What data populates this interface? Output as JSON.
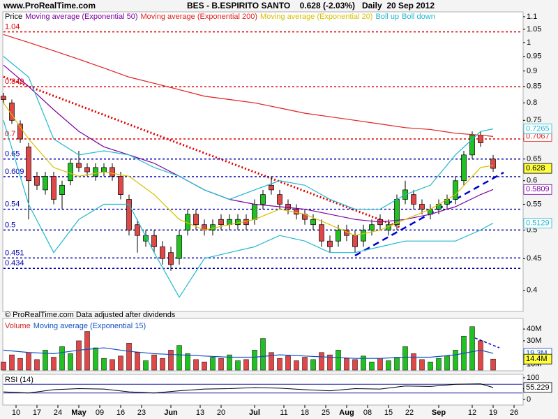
{
  "chart_data": [
    {
      "type": "candlestick",
      "source": "www.ProRealTime.com",
      "title": "BES - B.ESPIRITO SANTO    0.628 (-2.03%)   Daily  20 Sep 2012",
      "note": "© ProRealTime.com  Data adjusted after dividends",
      "legend_label": "Price",
      "log_scale": true,
      "xlim": [
        0,
        124
      ],
      "ylim": [
        0.371,
        1.117
      ],
      "yticks": [
        1.1,
        1.05,
        1,
        0.95,
        0.9,
        0.85,
        0.8,
        0.75,
        0.7,
        0.65,
        0.6,
        0.55,
        0.5,
        0.45,
        0.4
      ],
      "up_color": "#22c022",
      "down_color": "#e04848",
      "x": [
        0,
        2,
        4,
        6,
        8,
        10,
        12,
        14,
        16,
        18,
        20,
        22,
        24,
        26,
        28,
        30,
        32,
        34,
        36,
        38,
        40,
        42,
        44,
        46,
        48,
        50,
        52,
        54,
        56,
        58,
        60,
        62,
        64,
        66,
        68,
        70,
        72,
        74,
        76,
        78,
        80,
        82,
        84,
        86,
        88,
        90,
        92,
        94,
        96,
        98,
        100,
        102,
        104,
        106,
        108,
        110,
        112,
        114,
        117
      ],
      "open": [
        0.82,
        0.8,
        0.74,
        0.68,
        0.61,
        0.58,
        0.61,
        0.57,
        0.6,
        0.64,
        0.63,
        0.61,
        0.62,
        0.63,
        0.61,
        0.56,
        0.51,
        0.48,
        0.49,
        0.47,
        0.46,
        0.45,
        0.5,
        0.53,
        0.51,
        0.5,
        0.52,
        0.51,
        0.51,
        0.52,
        0.52,
        0.55,
        0.59,
        0.57,
        0.55,
        0.54,
        0.53,
        0.51,
        0.51,
        0.48,
        0.48,
        0.5,
        0.49,
        0.48,
        0.5,
        0.52,
        0.5,
        0.51,
        0.56,
        0.57,
        0.55,
        0.53,
        0.54,
        0.55,
        0.56,
        0.6,
        0.66,
        0.71,
        0.65
      ],
      "high": [
        0.83,
        0.81,
        0.75,
        0.69,
        0.62,
        0.62,
        0.62,
        0.6,
        0.65,
        0.67,
        0.64,
        0.64,
        0.64,
        0.64,
        0.62,
        0.57,
        0.52,
        0.5,
        0.5,
        0.48,
        0.47,
        0.5,
        0.54,
        0.54,
        0.52,
        0.52,
        0.53,
        0.53,
        0.53,
        0.53,
        0.56,
        0.58,
        0.61,
        0.58,
        0.56,
        0.55,
        0.54,
        0.53,
        0.52,
        0.49,
        0.51,
        0.51,
        0.5,
        0.51,
        0.52,
        0.53,
        0.52,
        0.57,
        0.6,
        0.58,
        0.56,
        0.55,
        0.56,
        0.57,
        0.61,
        0.67,
        0.72,
        0.72,
        0.66
      ],
      "low": [
        0.8,
        0.74,
        0.69,
        0.52,
        0.58,
        0.57,
        0.55,
        0.54,
        0.59,
        0.62,
        0.61,
        0.6,
        0.61,
        0.6,
        0.56,
        0.49,
        0.46,
        0.47,
        0.46,
        0.44,
        0.43,
        0.44,
        0.49,
        0.5,
        0.49,
        0.49,
        0.5,
        0.5,
        0.5,
        0.5,
        0.51,
        0.54,
        0.57,
        0.54,
        0.53,
        0.52,
        0.51,
        0.5,
        0.47,
        0.46,
        0.47,
        0.48,
        0.46,
        0.47,
        0.49,
        0.5,
        0.49,
        0.5,
        0.55,
        0.54,
        0.53,
        0.52,
        0.53,
        0.54,
        0.55,
        0.59,
        0.65,
        0.68,
        0.62
      ],
      "close": [
        0.81,
        0.75,
        0.7,
        0.6,
        0.59,
        0.61,
        0.56,
        0.59,
        0.64,
        0.63,
        0.62,
        0.63,
        0.63,
        0.61,
        0.57,
        0.5,
        0.49,
        0.49,
        0.47,
        0.45,
        0.44,
        0.49,
        0.53,
        0.51,
        0.5,
        0.51,
        0.51,
        0.52,
        0.52,
        0.51,
        0.55,
        0.57,
        0.58,
        0.55,
        0.54,
        0.53,
        0.52,
        0.52,
        0.48,
        0.47,
        0.5,
        0.49,
        0.47,
        0.5,
        0.51,
        0.51,
        0.51,
        0.56,
        0.58,
        0.55,
        0.54,
        0.54,
        0.55,
        0.56,
        0.6,
        0.66,
        0.71,
        0.69,
        0.628
      ],
      "series": [
        {
          "name": "Moving average (Exponential 50)",
          "color": "#7a00a0",
          "value_box": true,
          "x": [
            0,
            6,
            12,
            18,
            24,
            30,
            36,
            42,
            48,
            54,
            60,
            66,
            72,
            78,
            84,
            90,
            96,
            102,
            108,
            114,
            117
          ],
          "values": [
            0.92,
            0.85,
            0.78,
            0.72,
            0.68,
            0.66,
            0.64,
            0.61,
            0.58,
            0.56,
            0.55,
            0.545,
            0.54,
            0.53,
            0.52,
            0.515,
            0.52,
            0.53,
            0.545,
            0.57,
            0.5809
          ]
        },
        {
          "name": "Moving average (Exponential 200)",
          "color": "#e02020",
          "value_box": true,
          "x": [
            0,
            6,
            12,
            18,
            24,
            30,
            36,
            42,
            48,
            54,
            60,
            66,
            72,
            78,
            84,
            90,
            96,
            102,
            108,
            114,
            117
          ],
          "values": [
            1.03,
            1.0,
            0.97,
            0.94,
            0.91,
            0.88,
            0.86,
            0.84,
            0.82,
            0.81,
            0.8,
            0.785,
            0.77,
            0.76,
            0.75,
            0.74,
            0.73,
            0.725,
            0.715,
            0.71,
            0.7067
          ]
        },
        {
          "name": "Moving average (Exponential 20)",
          "color": "#d8c000",
          "value_box": false,
          "x": [
            0,
            6,
            12,
            18,
            24,
            30,
            36,
            42,
            48,
            54,
            60,
            66,
            72,
            78,
            84,
            90,
            96,
            102,
            108,
            114,
            117
          ],
          "values": [
            0.8,
            0.7,
            0.63,
            0.61,
            0.62,
            0.61,
            0.57,
            0.52,
            0.5,
            0.51,
            0.52,
            0.54,
            0.53,
            0.51,
            0.49,
            0.5,
            0.52,
            0.54,
            0.57,
            0.63,
            0.635
          ]
        },
        {
          "name": "Boll up",
          "color": "#20b8d0",
          "value_box": true,
          "x": [
            0,
            6,
            12,
            18,
            24,
            30,
            36,
            42,
            48,
            54,
            60,
            66,
            72,
            78,
            84,
            90,
            96,
            102,
            108,
            114,
            117
          ],
          "values": [
            0.95,
            0.88,
            0.7,
            0.66,
            0.67,
            0.66,
            0.63,
            0.61,
            0.58,
            0.56,
            0.58,
            0.6,
            0.59,
            0.56,
            0.54,
            0.54,
            0.57,
            0.59,
            0.66,
            0.72,
            0.7265
          ]
        },
        {
          "name": "Boll down",
          "color": "#20b8d0",
          "value_box": true,
          "x": [
            0,
            6,
            12,
            18,
            24,
            30,
            36,
            42,
            48,
            54,
            60,
            66,
            72,
            78,
            84,
            90,
            96,
            102,
            108,
            114,
            117
          ],
          "values": [
            0.75,
            0.55,
            0.46,
            0.52,
            0.55,
            0.55,
            0.46,
            0.39,
            0.45,
            0.46,
            0.47,
            0.49,
            0.48,
            0.46,
            0.46,
            0.47,
            0.48,
            0.48,
            0.48,
            0.5,
            0.5129
          ]
        }
      ],
      "levels": [
        {
          "value": 1.04,
          "label": "1.04",
          "color": "#e00000"
        },
        {
          "value": 0.849,
          "label": "0.849",
          "color": "#e00000"
        },
        {
          "value": 0.7,
          "label": "0.7",
          "color": "#e00000"
        },
        {
          "value": 0.65,
          "label": "0.65",
          "color": "#0000b0"
        },
        {
          "value": 0.609,
          "label": "0.609",
          "color": "#0000b0"
        },
        {
          "value": 0.54,
          "label": "0.54",
          "color": "#0000b0"
        },
        {
          "value": 0.5,
          "label": "0.5",
          "color": "#0000b0"
        },
        {
          "value": 0.451,
          "label": "0.451",
          "color": "#0000b0"
        },
        {
          "value": 0.434,
          "label": "0.434",
          "color": "#0000b0"
        }
      ]
    },
    {
      "type": "bar",
      "title": "Volume",
      "xlim": [
        0,
        124
      ],
      "ylim": [
        5000000,
        49000000
      ],
      "yticks": [
        {
          "value": 40000000,
          "label": "40M"
        },
        {
          "value": 30000000,
          "label": "30M"
        },
        {
          "value": 10000000,
          "label": "10M"
        }
      ],
      "x": [
        0,
        2,
        4,
        6,
        8,
        10,
        12,
        14,
        16,
        18,
        20,
        22,
        24,
        26,
        28,
        30,
        32,
        34,
        36,
        38,
        40,
        42,
        44,
        46,
        48,
        50,
        52,
        54,
        56,
        58,
        60,
        62,
        64,
        66,
        68,
        70,
        72,
        74,
        76,
        78,
        80,
        82,
        84,
        86,
        88,
        90,
        92,
        94,
        96,
        98,
        100,
        102,
        104,
        106,
        108,
        110,
        112,
        114,
        117
      ],
      "values": [
        12000000,
        18000000,
        15000000,
        20000000,
        14000000,
        22000000,
        16000000,
        25000000,
        19000000,
        30000000,
        38000000,
        24000000,
        15000000,
        14000000,
        17000000,
        28000000,
        20000000,
        13000000,
        18000000,
        15000000,
        22000000,
        26000000,
        19000000,
        14000000,
        12000000,
        16000000,
        15000000,
        18000000,
        13000000,
        14000000,
        22000000,
        32000000,
        20000000,
        15000000,
        17000000,
        13000000,
        16000000,
        14000000,
        20000000,
        18000000,
        22000000,
        15000000,
        14000000,
        17000000,
        12000000,
        15000000,
        13000000,
        16000000,
        25000000,
        19000000,
        14000000,
        12000000,
        15000000,
        17000000,
        22000000,
        34000000,
        42000000,
        30000000,
        14400000
      ],
      "value_labels": [
        null,
        null,
        null,
        null,
        null,
        null,
        null,
        null,
        null,
        null,
        null,
        null,
        null,
        null,
        null,
        null,
        null,
        null,
        null,
        null,
        null,
        null,
        null,
        null,
        null,
        null,
        null,
        null,
        null,
        null,
        null,
        null,
        null,
        null,
        null,
        null,
        null,
        null,
        null,
        null,
        null,
        null,
        null,
        null,
        null,
        null,
        null,
        null,
        null,
        null,
        null,
        null,
        null,
        null,
        null,
        null,
        null,
        null,
        "14.4M"
      ],
      "series": [
        {
          "name": "Moving average (Exponential 15)",
          "color": "#1050c0",
          "x": [
            0,
            6,
            12,
            18,
            24,
            30,
            36,
            42,
            48,
            54,
            60,
            66,
            72,
            78,
            84,
            90,
            96,
            102,
            108,
            114,
            117
          ],
          "values": [
            22000000,
            20000000,
            19000000,
            22000000,
            24000000,
            21000000,
            19000000,
            18000000,
            17000000,
            16000000,
            16000000,
            18000000,
            17000000,
            16000000,
            15000000,
            15000000,
            16000000,
            16000000,
            18000000,
            22000000,
            19300000
          ],
          "value_labels": [
            null,
            null,
            null,
            null,
            null,
            null,
            null,
            null,
            null,
            null,
            null,
            null,
            null,
            null,
            null,
            null,
            null,
            null,
            null,
            null,
            "19.3M"
          ]
        }
      ]
    },
    {
      "type": "line",
      "title": "RSI (14)",
      "color": "#000000",
      "xlim": [
        0,
        124
      ],
      "ylim": [
        0,
        100
      ],
      "yticks": [
        100,
        50,
        0
      ],
      "levels": [
        70,
        30
      ],
      "x": [
        0,
        6,
        12,
        18,
        24,
        30,
        36,
        42,
        48,
        54,
        60,
        66,
        72,
        78,
        84,
        90,
        96,
        102,
        108,
        114,
        117
      ],
      "values": [
        35,
        30,
        45,
        50,
        48,
        35,
        30,
        40,
        48,
        50,
        55,
        52,
        45,
        40,
        50,
        48,
        62,
        60,
        70,
        72,
        55.229
      ],
      "xticks": [
        {
          "value": 3,
          "label": "10"
        },
        {
          "value": 8,
          "label": "17"
        },
        {
          "value": 13,
          "label": "24"
        },
        {
          "value": 18,
          "label": "May"
        },
        {
          "value": 23,
          "label": "09"
        },
        {
          "value": 28,
          "label": "16"
        },
        {
          "value": 33,
          "label": "23"
        },
        {
          "value": 40,
          "label": "Jun"
        },
        {
          "value": 47,
          "label": "13"
        },
        {
          "value": 52,
          "label": "20"
        },
        {
          "value": 60,
          "label": "Jul"
        },
        {
          "value": 67,
          "label": "11"
        },
        {
          "value": 72,
          "label": "18"
        },
        {
          "value": 77,
          "label": "25"
        },
        {
          "value": 82,
          "label": "Aug"
        },
        {
          "value": 87,
          "label": "08"
        },
        {
          "value": 92,
          "label": "15"
        },
        {
          "value": 97,
          "label": "22"
        },
        {
          "value": 104,
          "label": "Sep"
        },
        {
          "value": 112,
          "label": "12"
        },
        {
          "value": 117,
          "label": "19"
        },
        {
          "value": 122,
          "label": "26"
        }
      ]
    }
  ]
}
